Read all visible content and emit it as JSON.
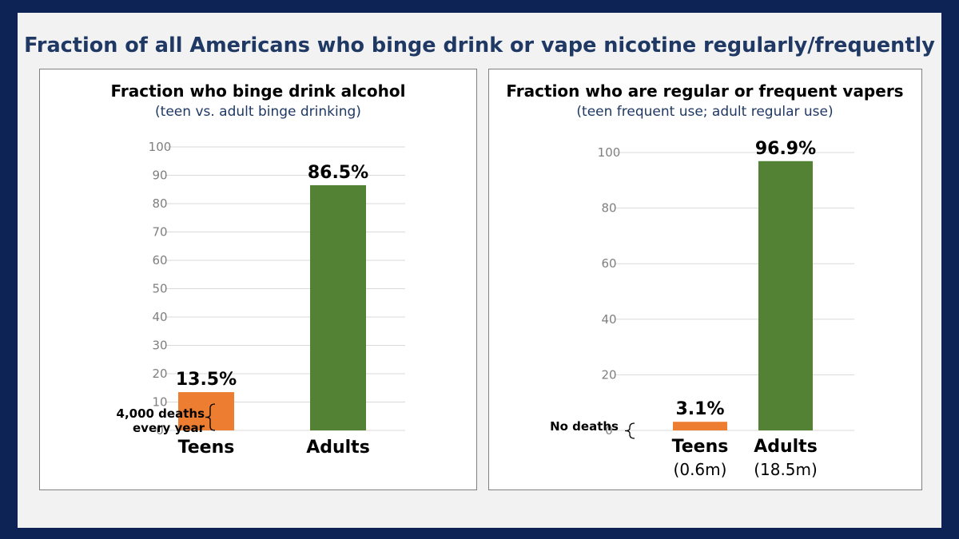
{
  "title": "Fraction of all Americans who binge drink or vape nicotine regularly/frequently",
  "colors": {
    "teens": "#ed7d31",
    "adults": "#548235",
    "frame": "#0d2356",
    "title": "#1f3864"
  },
  "chart_data": [
    {
      "type": "bar",
      "title": "Fraction who binge drink alcohol",
      "subtitle": "(teen vs. adult binge drinking)",
      "categories": [
        "Teens",
        "Adults"
      ],
      "values": [
        13.5,
        86.5
      ],
      "value_labels": [
        "13.5%",
        "86.5%"
      ],
      "ylim": [
        0,
        100
      ],
      "yticks": [
        0,
        10,
        20,
        30,
        40,
        50,
        60,
        70,
        80,
        90,
        100
      ],
      "annotation": [
        "4,000 deaths",
        "every year"
      ],
      "category_notes": [
        "",
        ""
      ],
      "grid": true
    },
    {
      "type": "bar",
      "title": "Fraction who are regular or frequent vapers",
      "subtitle": "(teen frequent use; adult regular use)",
      "categories": [
        "Teens",
        "Adults"
      ],
      "values": [
        3.1,
        96.9
      ],
      "value_labels": [
        "3.1%",
        "96.9%"
      ],
      "ylim": [
        0,
        100
      ],
      "yticks": [
        0,
        20,
        40,
        60,
        80,
        100
      ],
      "annotation": [
        "No deaths"
      ],
      "category_notes": [
        "(0.6m)",
        "(18.5m)"
      ],
      "grid": true
    }
  ]
}
